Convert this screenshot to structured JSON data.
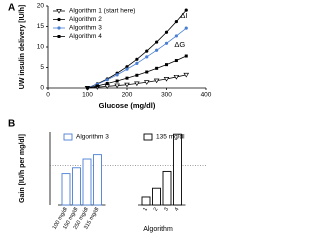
{
  "chart_data": [
    {
      "type": "line",
      "panel_label": "A",
      "xlabel": "Glucose (mg/dl)",
      "ylabel": "UW insulin delivery [IU/h]",
      "x": [
        100,
        125,
        150,
        175,
        200,
        225,
        250,
        275,
        300,
        325,
        350
      ],
      "series": [
        {
          "name": "Algorithm 1 (start here)",
          "color": "#000000",
          "marker": "triangle-open",
          "values": [
            0,
            0.2,
            0.4,
            0.6,
            0.8,
            1.1,
            1.4,
            1.8,
            2.2,
            2.7,
            3.2
          ]
        },
        {
          "name": "Algorithm 2",
          "color": "#000000",
          "marker": "circle",
          "values": [
            0,
            1,
            2.2,
            3.6,
            5.2,
            7,
            9,
            11.2,
            13.6,
            16.2,
            19
          ]
        },
        {
          "name": "Algorithm 3",
          "color": "#4a7fd4",
          "marker": "circle",
          "values": [
            0,
            0.9,
            2,
            3.2,
            4.6,
            6,
            7.6,
            9.2,
            10.9,
            12.7,
            14.6
          ]
        },
        {
          "name": "Algorithm 4",
          "color": "#000000",
          "marker": "square",
          "values": [
            0,
            0.5,
            1.1,
            1.7,
            2.4,
            3.1,
            3.9,
            4.8,
            5.7,
            6.7,
            7.8
          ]
        }
      ],
      "annotations": [
        "ΔI",
        "ΔG"
      ],
      "xlim": [
        0,
        400
      ],
      "xticks": [
        0,
        100,
        200,
        300,
        400
      ],
      "ylim": [
        0,
        20
      ],
      "yticks": [
        0,
        5,
        10,
        15,
        20
      ]
    },
    {
      "type": "bar",
      "panel_label": "B",
      "ylabel": "Gain [IU/h per mg/dl]",
      "xlabel": "Algorithm",
      "groups": [
        {
          "name": "Algorithm 3",
          "color": "#4a7fd4",
          "filled": false,
          "categories": [
            "100 mg/dl",
            "150 mg/dl",
            "250 mg/dl",
            "315 mg/dl"
          ],
          "values": [
            0.043,
            0.051,
            0.063,
            0.069
          ]
        },
        {
          "name": "135 mg/dl",
          "color": "#000000",
          "filled": false,
          "categories": [
            "1",
            "2",
            "3",
            "4"
          ],
          "values": [
            0.011,
            0.023,
            0.046,
            0.097
          ]
        }
      ],
      "reference_line": 0.054,
      "ylim": [
        0,
        0.1
      ]
    }
  ]
}
